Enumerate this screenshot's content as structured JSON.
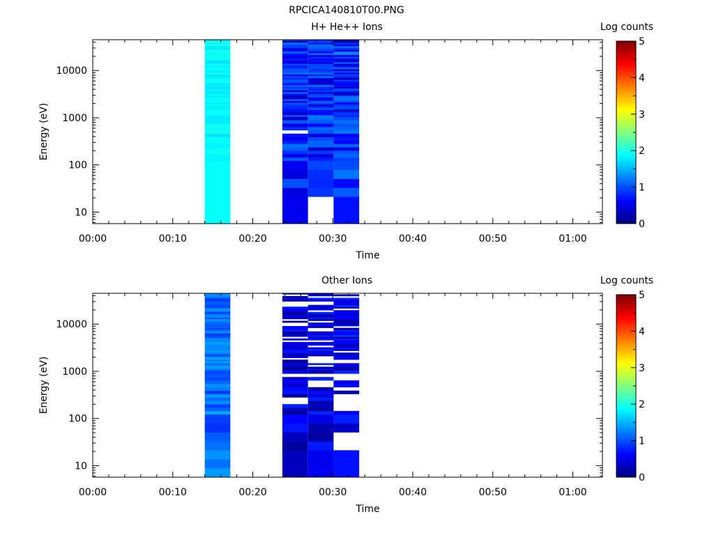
{
  "page_title": "RPCICA140810T00.PNG",
  "colors": {
    "background": "#ffffff",
    "axis": "#000000",
    "colormap": [
      "#000080",
      "#0000ff",
      "#0080ff",
      "#00ffff",
      "#80ff80",
      "#ffff00",
      "#ff8000",
      "#ff0000",
      "#800000"
    ]
  },
  "chart_data": [
    {
      "type": "heatmap",
      "title": "H+ He++ Ions",
      "xlabel": "Time",
      "ylabel": "Energy (eV)",
      "x_ticks": [
        "00:00",
        "00:10",
        "00:20",
        "00:30",
        "00:40",
        "00:50",
        "01:00"
      ],
      "x_tick_minutes": [
        0,
        10,
        20,
        30,
        40,
        50,
        60
      ],
      "xlim_minutes": [
        0,
        63.7
      ],
      "y_scale": "log",
      "y_ticks": [
        "10",
        "100",
        "1000",
        "10000"
      ],
      "y_tick_values": [
        10,
        100,
        1000,
        10000
      ],
      "ylim": [
        5.7,
        45000
      ],
      "colorbar": {
        "label": "Log counts",
        "ticks": [
          "0",
          "1",
          "2",
          "3",
          "4",
          "5"
        ],
        "range": [
          0,
          5
        ]
      },
      "time_bins": [
        {
          "start_min": 14.0,
          "end_min": 17.2,
          "pattern": "cyan-band",
          "base": 1.85,
          "amp": 0.12,
          "seed": 3
        },
        {
          "start_min": 23.7,
          "end_min": 26.9,
          "pattern": "blue-mix",
          "base": 0.75,
          "amp": 0.5,
          "seed": 11,
          "overrides": [
            {
              "emin": 6,
              "emax": 26,
              "value": 0.55
            },
            {
              "emin": 500,
              "emax": 560,
              "value": null
            }
          ]
        },
        {
          "start_min": 26.9,
          "end_min": 30.1,
          "pattern": "blue-mix",
          "base": 0.8,
          "amp": 0.45,
          "seed": 23,
          "overrides": [
            {
              "emin": 6,
              "emax": 26,
              "value": null
            }
          ]
        },
        {
          "start_min": 30.1,
          "end_min": 33.3,
          "pattern": "blue-mix",
          "base": 0.75,
          "amp": 0.5,
          "seed": 37,
          "overrides": [
            {
              "emin": 6,
              "emax": 26,
              "value": 0.7
            }
          ]
        }
      ]
    },
    {
      "type": "heatmap",
      "title": "Other Ions",
      "xlabel": "Time",
      "ylabel": "Energy (eV)",
      "x_ticks": [
        "00:00",
        "00:10",
        "00:20",
        "00:30",
        "00:40",
        "00:50",
        "01:00"
      ],
      "x_tick_minutes": [
        0,
        10,
        20,
        30,
        40,
        50,
        60
      ],
      "xlim_minutes": [
        0,
        63.7
      ],
      "y_scale": "log",
      "y_ticks": [
        "10",
        "100",
        "1000",
        "10000"
      ],
      "y_tick_values": [
        10,
        100,
        1000,
        10000
      ],
      "ylim": [
        5.7,
        45000
      ],
      "colorbar": {
        "label": "Log counts",
        "ticks": [
          "0",
          "1",
          "2",
          "3",
          "4",
          "5"
        ],
        "range": [
          0,
          5
        ]
      },
      "time_bins": [
        {
          "start_min": 14.0,
          "end_min": 17.2,
          "pattern": "blue-band",
          "base": 1.15,
          "amp": 0.3,
          "seed": 5
        },
        {
          "start_min": 23.7,
          "end_min": 26.9,
          "pattern": "sparse",
          "base": 0.45,
          "amp": 0.35,
          "seed": 13,
          "gap_rate": 0.22,
          "overrides": [
            {
              "emin": 6,
              "emax": 26,
              "value": 0.3
            }
          ]
        },
        {
          "start_min": 26.9,
          "end_min": 30.1,
          "pattern": "sparse",
          "base": 0.5,
          "amp": 0.35,
          "seed": 29,
          "gap_rate": 0.3,
          "overrides": [
            {
              "emin": 6,
              "emax": 26,
              "value": 0.55
            }
          ]
        },
        {
          "start_min": 30.1,
          "end_min": 33.3,
          "pattern": "sparse",
          "base": 0.5,
          "amp": 0.4,
          "seed": 41,
          "gap_rate": 0.3,
          "overrides": [
            {
              "emin": 6,
              "emax": 26,
              "value": 0.7
            },
            {
              "emin": 26,
              "emax": 55,
              "value": null
            },
            {
              "emin": 150,
              "emax": 340,
              "value": null
            }
          ]
        }
      ]
    }
  ]
}
